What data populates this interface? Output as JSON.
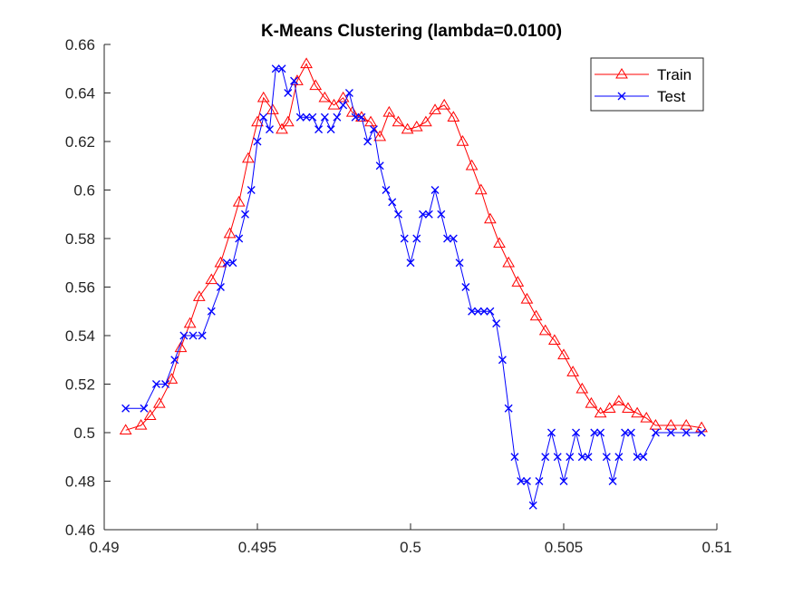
{
  "chart_data": {
    "type": "line",
    "title": "K-Means Clustering (lambda=0.0100)",
    "xlabel": "",
    "ylabel": "",
    "xlim": [
      0.49,
      0.51
    ],
    "ylim": [
      0.46,
      0.66
    ],
    "xticks": [
      0.49,
      0.495,
      0.5,
      0.505,
      0.51
    ],
    "xtick_labels": [
      "0.49",
      "0.495",
      "0.5",
      "0.505",
      "0.51"
    ],
    "yticks": [
      0.46,
      0.48,
      0.5,
      0.52,
      0.54,
      0.56,
      0.58,
      0.6,
      0.62,
      0.64,
      0.66
    ],
    "ytick_labels": [
      "0.46",
      "0.48",
      "0.5",
      "0.52",
      "0.54",
      "0.56",
      "0.58",
      "0.6",
      "0.62",
      "0.64",
      "0.66"
    ],
    "grid": false,
    "legend_position": "top-right",
    "series": [
      {
        "name": "Train",
        "color": "#ff0000",
        "marker": "triangle",
        "x": [
          0.4907,
          0.4912,
          0.4915,
          0.4918,
          0.4922,
          0.4925,
          0.4928,
          0.4931,
          0.4935,
          0.4938,
          0.4941,
          0.4944,
          0.4947,
          0.495,
          0.4952,
          0.4955,
          0.4958,
          0.496,
          0.4963,
          0.4966,
          0.4969,
          0.4972,
          0.4975,
          0.4978,
          0.4981,
          0.4984,
          0.4987,
          0.499,
          0.4993,
          0.4996,
          0.4999,
          0.5002,
          0.5005,
          0.5008,
          0.5011,
          0.5014,
          0.5017,
          0.502,
          0.5023,
          0.5026,
          0.5029,
          0.5032,
          0.5035,
          0.5038,
          0.5041,
          0.5044,
          0.5047,
          0.505,
          0.5053,
          0.5056,
          0.5059,
          0.5062,
          0.5065,
          0.5068,
          0.5071,
          0.5074,
          0.5077,
          0.508,
          0.5085,
          0.509,
          0.5095
        ],
        "y": [
          0.501,
          0.503,
          0.507,
          0.512,
          0.522,
          0.535,
          0.545,
          0.556,
          0.563,
          0.57,
          0.582,
          0.595,
          0.613,
          0.628,
          0.638,
          0.633,
          0.625,
          0.628,
          0.645,
          0.652,
          0.643,
          0.638,
          0.635,
          0.638,
          0.632,
          0.63,
          0.628,
          0.622,
          0.632,
          0.628,
          0.625,
          0.626,
          0.628,
          0.633,
          0.635,
          0.63,
          0.62,
          0.61,
          0.6,
          0.588,
          0.578,
          0.57,
          0.562,
          0.555,
          0.548,
          0.542,
          0.538,
          0.532,
          0.525,
          0.518,
          0.512,
          0.508,
          0.51,
          0.513,
          0.51,
          0.508,
          0.506,
          0.503,
          0.503,
          0.503,
          0.502
        ]
      },
      {
        "name": "Test",
        "color": "#0000ff",
        "marker": "x",
        "x": [
          0.4907,
          0.4913,
          0.4917,
          0.492,
          0.4923,
          0.4926,
          0.4929,
          0.4932,
          0.4935,
          0.4938,
          0.494,
          0.4942,
          0.4944,
          0.4946,
          0.4948,
          0.495,
          0.4952,
          0.4954,
          0.4956,
          0.4958,
          0.496,
          0.4962,
          0.4964,
          0.4966,
          0.4968,
          0.497,
          0.4972,
          0.4974,
          0.4976,
          0.4978,
          0.498,
          0.4982,
          0.4984,
          0.4986,
          0.4988,
          0.499,
          0.4992,
          0.4994,
          0.4996,
          0.4998,
          0.5,
          0.5002,
          0.5004,
          0.5006,
          0.5008,
          0.501,
          0.5012,
          0.5014,
          0.5016,
          0.5018,
          0.502,
          0.5022,
          0.5024,
          0.5026,
          0.5028,
          0.503,
          0.5032,
          0.5034,
          0.5036,
          0.5038,
          0.504,
          0.5042,
          0.5044,
          0.5046,
          0.5048,
          0.505,
          0.5052,
          0.5054,
          0.5056,
          0.5058,
          0.506,
          0.5062,
          0.5064,
          0.5066,
          0.5068,
          0.507,
          0.5072,
          0.5074,
          0.5076,
          0.508,
          0.5085,
          0.509,
          0.5095
        ],
        "y": [
          0.51,
          0.51,
          0.52,
          0.52,
          0.53,
          0.54,
          0.54,
          0.54,
          0.55,
          0.56,
          0.57,
          0.57,
          0.58,
          0.59,
          0.6,
          0.62,
          0.63,
          0.625,
          0.65,
          0.65,
          0.64,
          0.645,
          0.63,
          0.63,
          0.63,
          0.625,
          0.63,
          0.625,
          0.63,
          0.635,
          0.64,
          0.63,
          0.63,
          0.62,
          0.625,
          0.61,
          0.6,
          0.595,
          0.59,
          0.58,
          0.57,
          0.58,
          0.59,
          0.59,
          0.6,
          0.59,
          0.58,
          0.58,
          0.57,
          0.56,
          0.55,
          0.55,
          0.55,
          0.55,
          0.545,
          0.53,
          0.51,
          0.49,
          0.48,
          0.48,
          0.47,
          0.48,
          0.49,
          0.5,
          0.49,
          0.48,
          0.49,
          0.5,
          0.49,
          0.49,
          0.5,
          0.5,
          0.49,
          0.48,
          0.49,
          0.5,
          0.5,
          0.49,
          0.49,
          0.5,
          0.5,
          0.5,
          0.5
        ]
      }
    ]
  }
}
